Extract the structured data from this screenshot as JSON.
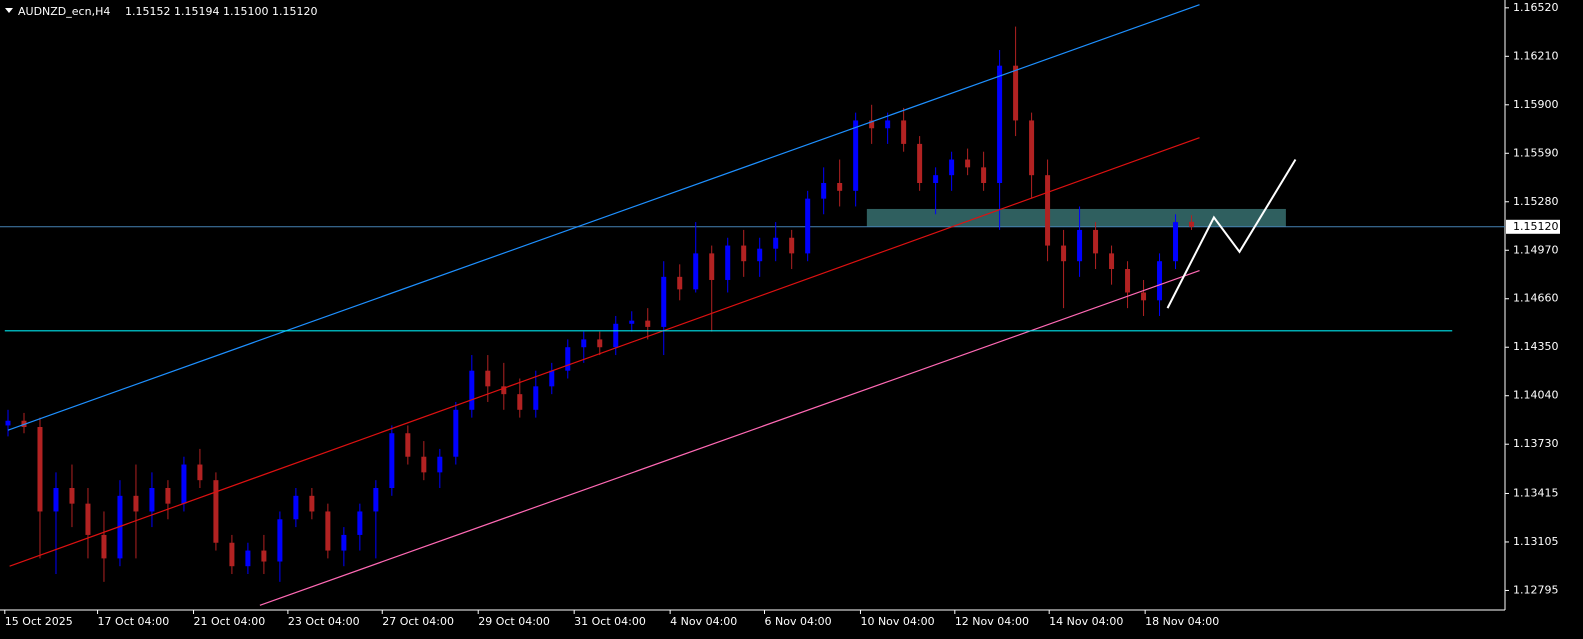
{
  "chart_data": {
    "type": "candlestick",
    "header": {
      "symbol": "AUDNZD_ecn,H4",
      "quote": [
        "1.15152",
        "1.15194",
        "1.15100",
        "1.15120"
      ]
    },
    "bull_color": "#0000ff",
    "bear_color": "#b22222",
    "candles": [
      [
        1.1385,
        1.1395,
        1.1378,
        1.1388
      ],
      [
        1.1388,
        1.1393,
        1.138,
        1.1384
      ],
      [
        1.1384,
        1.139,
        1.13,
        1.133
      ],
      [
        1.133,
        1.1355,
        1.129,
        1.1345
      ],
      [
        1.1345,
        1.136,
        1.132,
        1.1335
      ],
      [
        1.1335,
        1.1345,
        1.13,
        1.1315
      ],
      [
        1.1315,
        1.133,
        1.1285,
        1.13
      ],
      [
        1.13,
        1.135,
        1.1295,
        1.134
      ],
      [
        1.134,
        1.136,
        1.13,
        1.133
      ],
      [
        1.133,
        1.1355,
        1.132,
        1.1345
      ],
      [
        1.1345,
        1.135,
        1.1325,
        1.1335
      ],
      [
        1.1335,
        1.1365,
        1.133,
        1.136
      ],
      [
        1.136,
        1.137,
        1.1345,
        1.135
      ],
      [
        1.135,
        1.1355,
        1.1305,
        1.131
      ],
      [
        1.131,
        1.1315,
        1.129,
        1.1295
      ],
      [
        1.1295,
        1.131,
        1.129,
        1.1305
      ],
      [
        1.1305,
        1.1315,
        1.129,
        1.1298
      ],
      [
        1.1298,
        1.133,
        1.1285,
        1.1325
      ],
      [
        1.1325,
        1.1345,
        1.132,
        1.134
      ],
      [
        1.134,
        1.1345,
        1.1325,
        1.133
      ],
      [
        1.133,
        1.1335,
        1.13,
        1.1305
      ],
      [
        1.1305,
        1.132,
        1.1295,
        1.1315
      ],
      [
        1.1315,
        1.1335,
        1.1305,
        1.133
      ],
      [
        1.133,
        1.135,
        1.13,
        1.1345
      ],
      [
        1.1345,
        1.1385,
        1.134,
        1.138
      ],
      [
        1.138,
        1.1385,
        1.136,
        1.1365
      ],
      [
        1.1365,
        1.1375,
        1.135,
        1.1355
      ],
      [
        1.1355,
        1.137,
        1.1345,
        1.1365
      ],
      [
        1.1365,
        1.14,
        1.136,
        1.1395
      ],
      [
        1.1395,
        1.143,
        1.139,
        1.142
      ],
      [
        1.142,
        1.143,
        1.14,
        1.141
      ],
      [
        1.141,
        1.1425,
        1.1395,
        1.1405
      ],
      [
        1.1405,
        1.1415,
        1.139,
        1.1395
      ],
      [
        1.1395,
        1.142,
        1.139,
        1.141
      ],
      [
        1.141,
        1.1425,
        1.1405,
        1.142
      ],
      [
        1.142,
        1.144,
        1.1415,
        1.1435
      ],
      [
        1.1435,
        1.1445,
        1.1425,
        1.144
      ],
      [
        1.144,
        1.1445,
        1.143,
        1.1435
      ],
      [
        1.1435,
        1.1455,
        1.143,
        1.145
      ],
      [
        1.145,
        1.1458,
        1.1445,
        1.1452
      ],
      [
        1.1452,
        1.146,
        1.144,
        1.1448
      ],
      [
        1.1448,
        1.149,
        1.143,
        1.148
      ],
      [
        1.148,
        1.1488,
        1.1465,
        1.1472
      ],
      [
        1.1472,
        1.1515,
        1.147,
        1.1495
      ],
      [
        1.1495,
        1.15,
        1.1445,
        1.1478
      ],
      [
        1.1478,
        1.1505,
        1.147,
        1.15
      ],
      [
        1.15,
        1.151,
        1.148,
        1.149
      ],
      [
        1.149,
        1.1505,
        1.148,
        1.1498
      ],
      [
        1.1498,
        1.1515,
        1.149,
        1.1505
      ],
      [
        1.1505,
        1.151,
        1.1485,
        1.1495
      ],
      [
        1.1495,
        1.1535,
        1.149,
        1.153
      ],
      [
        1.153,
        1.155,
        1.152,
        1.154
      ],
      [
        1.154,
        1.1555,
        1.1525,
        1.1535
      ],
      [
        1.1535,
        1.1585,
        1.1525,
        1.158
      ],
      [
        1.158,
        1.159,
        1.1565,
        1.1575
      ],
      [
        1.1575,
        1.1585,
        1.1565,
        1.158
      ],
      [
        1.158,
        1.1588,
        1.156,
        1.1565
      ],
      [
        1.1565,
        1.157,
        1.1535,
        1.154
      ],
      [
        1.154,
        1.155,
        1.152,
        1.1545
      ],
      [
        1.1545,
        1.156,
        1.1535,
        1.1555
      ],
      [
        1.1555,
        1.1562,
        1.1545,
        1.155
      ],
      [
        1.155,
        1.156,
        1.1535,
        1.154
      ],
      [
        1.154,
        1.1625,
        1.151,
        1.1615
      ],
      [
        1.1615,
        1.164,
        1.157,
        1.158
      ],
      [
        1.158,
        1.1585,
        1.153,
        1.1545
      ],
      [
        1.1545,
        1.1555,
        1.149,
        1.15
      ],
      [
        1.15,
        1.151,
        1.146,
        1.149
      ],
      [
        1.149,
        1.1525,
        1.148,
        1.151
      ],
      [
        1.151,
        1.1515,
        1.1485,
        1.1495
      ],
      [
        1.1495,
        1.15,
        1.1475,
        1.1485
      ],
      [
        1.1485,
        1.149,
        1.146,
        1.147
      ],
      [
        1.147,
        1.1478,
        1.1455,
        1.1465
      ],
      [
        1.1465,
        1.1495,
        1.1455,
        1.149
      ],
      [
        1.149,
        1.152,
        1.1485,
        1.1515
      ],
      [
        1.15152,
        1.15194,
        1.151,
        1.1512
      ]
    ],
    "xlim": [
      -0.5,
      93.6
    ],
    "ylim": [
      1.1267,
      1.1657
    ],
    "xticks": [
      {
        "value": -0.2,
        "label": "15 Oct 2025"
      },
      {
        "value": 5.6,
        "label": "17 Oct 04:00"
      },
      {
        "value": 11.6,
        "label": "21 Oct 04:00"
      },
      {
        "value": 17.5,
        "label": "23 Oct 04:00"
      },
      {
        "value": 23.4,
        "label": "27 Oct 04:00"
      },
      {
        "value": 29.4,
        "label": "29 Oct 04:00"
      },
      {
        "value": 35.4,
        "label": "31 Oct 04:00"
      },
      {
        "value": 41.4,
        "label": "4 Nov 04:00"
      },
      {
        "value": 47.3,
        "label": "6 Nov 04:00"
      },
      {
        "value": 53.3,
        "label": "10 Nov 04:00"
      },
      {
        "value": 59.2,
        "label": "12 Nov 04:00"
      },
      {
        "value": 65.1,
        "label": "14 Nov 04:00"
      },
      {
        "value": 71.1,
        "label": "18 Nov 04:00"
      }
    ],
    "yticks": [
      {
        "value": 1.1652,
        "label": "1.16520"
      },
      {
        "value": 1.1621,
        "label": "1.16210"
      },
      {
        "value": 1.159,
        "label": "1.15900"
      },
      {
        "value": 1.1559,
        "label": "1.15590"
      },
      {
        "value": 1.1528,
        "label": "1.15280"
      },
      {
        "value": 1.1497,
        "label": "1.14970"
      },
      {
        "value": 1.1466,
        "label": "1.14660"
      },
      {
        "value": 1.1435,
        "label": "1.14350"
      },
      {
        "value": 1.1404,
        "label": "1.14040"
      },
      {
        "value": 1.1373,
        "label": "1.13730"
      },
      1.13415,
      1.13105,
      1.12795
    ],
    "current_price": {
      "value": 1.1512,
      "label": "1.15120",
      "color": "#4682b4"
    },
    "lines": [
      {
        "color": "#1e90ff",
        "points": [
          [
            0,
            1.1382
          ],
          [
            74.5,
            1.1654
          ]
        ]
      },
      {
        "color": "#dd1111",
        "points": [
          [
            0.1,
            1.1295
          ],
          [
            74.5,
            1.1569
          ]
        ]
      },
      {
        "color": "#ff69b4",
        "points": [
          [
            15.75,
            1.127
          ],
          [
            74.5,
            1.1484
          ]
        ]
      },
      {
        "color": "#00e5ee",
        "points": [
          [
            -0.2,
            1.14455
          ],
          [
            90.3,
            1.14455
          ]
        ]
      },
      {
        "color": "#ffffff",
        "points": [
          [
            72.5,
            1.146
          ],
          [
            75.4,
            1.1518
          ],
          [
            77,
            1.1496
          ],
          [
            80.5,
            1.1555
          ]
        ]
      }
    ],
    "zone": {
      "color": "#2f5f5f",
      "x": [
        53.7,
        79.9
      ],
      "y": [
        1.15234,
        1.1512
      ]
    }
  }
}
